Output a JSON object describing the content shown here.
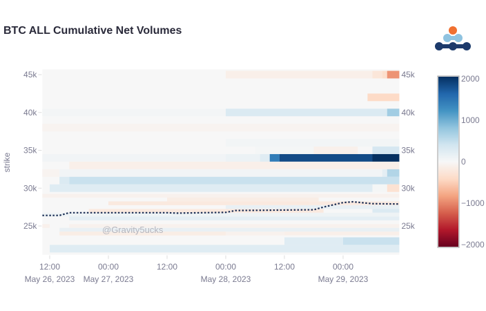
{
  "title": "BTC ALL Cumulative Net Volumes",
  "watermark": "@Gravity5ucks",
  "logo": {
    "colors": [
      "#f07030",
      "#8fc3e0",
      "#1c3a6b"
    ]
  },
  "chart_data": {
    "type": "heatmap",
    "title": "BTC ALL Cumulative Net Volumes",
    "ylabel": "strike",
    "xlabel": "",
    "xrange": [
      "2023-05-26T10:30",
      "2023-05-29T11:30"
    ],
    "yrange": [
      21200,
      45700
    ],
    "y_ticks": [
      {
        "v": 25000,
        "label": "25k"
      },
      {
        "v": 30000,
        "label": "30k"
      },
      {
        "v": 35000,
        "label": "35k"
      },
      {
        "v": 40000,
        "label": "40k"
      },
      {
        "v": 45000,
        "label": "45k"
      }
    ],
    "x_ticks": [
      {
        "t": "2023-05-26T12:00",
        "label": "12:00",
        "date": "May 26, 2023"
      },
      {
        "t": "2023-05-27T00:00",
        "label": "00:00",
        "date": "May 27, 2023"
      },
      {
        "t": "2023-05-27T12:00",
        "label": "12:00",
        "date": ""
      },
      {
        "t": "2023-05-28T00:00",
        "label": "00:00",
        "date": "May 28, 2023"
      },
      {
        "t": "2023-05-28T12:00",
        "label": "12:00",
        "date": ""
      },
      {
        "t": "2023-05-29T00:00",
        "label": "00:00",
        "date": "May 29, 2023"
      }
    ],
    "colorscale": "RdBu",
    "zrange": [
      -2000,
      2000
    ],
    "colorbar_ticks": [
      {
        "v": 2000,
        "label": "2000"
      },
      {
        "v": 1000,
        "label": "1000"
      },
      {
        "v": 0,
        "label": "0"
      },
      {
        "v": -1000,
        "label": "−1000"
      },
      {
        "v": -2000,
        "label": "−2000"
      }
    ],
    "rows": [
      {
        "strike": 45000,
        "segments": [
          [
            "2023-05-28T00:00",
            "2023-05-29T06:00",
            -120
          ],
          [
            "2023-05-29T06:00",
            "2023-05-29T08:00",
            -250
          ],
          [
            "2023-05-29T08:00",
            "2023-05-29T09:00",
            -350
          ],
          [
            "2023-05-29T09:00",
            "2023-05-29T11:30",
            -900
          ]
        ]
      },
      {
        "strike": 42000,
        "segments": [
          [
            "2023-05-29T05:00",
            "2023-05-29T11:30",
            -400
          ]
        ]
      },
      {
        "strike": 40000,
        "segments": [
          [
            "2023-05-26T10:30",
            "2023-05-28T00:00",
            40
          ],
          [
            "2023-05-28T00:00",
            "2023-05-29T09:00",
            300
          ],
          [
            "2023-05-29T09:00",
            "2023-05-29T11:30",
            700
          ]
        ]
      },
      {
        "strike": 38000,
        "segments": [
          [
            "2023-05-26T10:30",
            "2023-05-29T11:30",
            -60
          ]
        ]
      },
      {
        "strike": 36000,
        "segments": [
          [
            "2023-05-28T00:00",
            "2023-05-29T11:30",
            50
          ]
        ]
      },
      {
        "strike": 35000,
        "segments": [
          [
            "2023-05-28T06:00",
            "2023-05-28T18:00",
            30
          ],
          [
            "2023-05-28T18:00",
            "2023-05-29T03:00",
            -100
          ],
          [
            "2023-05-29T06:00",
            "2023-05-29T11:30",
            350
          ]
        ]
      },
      {
        "strike": 34000,
        "segments": [
          [
            "2023-05-26T10:30",
            "2023-05-28T00:00",
            60
          ],
          [
            "2023-05-28T00:00",
            "2023-05-28T07:00",
            120
          ],
          [
            "2023-05-28T07:00",
            "2023-05-28T09:00",
            250
          ],
          [
            "2023-05-28T09:00",
            "2023-05-28T11:00",
            1400
          ],
          [
            "2023-05-28T11:00",
            "2023-05-29T06:00",
            1800
          ],
          [
            "2023-05-29T06:00",
            "2023-05-29T11:30",
            2000
          ]
        ]
      },
      {
        "strike": 33000,
        "segments": [
          [
            "2023-05-26T16:00",
            "2023-05-29T11:30",
            -120
          ]
        ]
      },
      {
        "strike": 32000,
        "segments": [
          [
            "2023-05-26T10:30",
            "2023-05-26T14:00",
            -60
          ],
          [
            "2023-05-26T14:00",
            "2023-05-29T08:00",
            60
          ],
          [
            "2023-05-29T08:00",
            "2023-05-29T09:00",
            200
          ],
          [
            "2023-05-29T09:00",
            "2023-05-29T11:30",
            600
          ]
        ]
      },
      {
        "strike": 31000,
        "segments": [
          [
            "2023-05-26T14:00",
            "2023-05-26T16:00",
            300
          ],
          [
            "2023-05-26T16:00",
            "2023-05-29T11:30",
            450
          ]
        ]
      },
      {
        "strike": 30000,
        "segments": [
          [
            "2023-05-26T12:00",
            "2023-05-29T06:00",
            250
          ],
          [
            "2023-05-29T06:00",
            "2023-05-29T09:00",
            30
          ],
          [
            "2023-05-29T09:00",
            "2023-05-29T11:30",
            -300
          ]
        ]
      },
      {
        "strike": 29000,
        "segments": [
          [
            "2023-05-26T10:30",
            "2023-05-29T11:30",
            -80
          ]
        ]
      },
      {
        "strike": 28500,
        "segments": [
          [
            "2023-05-27T12:00",
            "2023-05-28T19:00",
            -150
          ]
        ]
      },
      {
        "strike": 28000,
        "segments": [
          [
            "2023-05-27T00:00",
            "2023-05-28T17:00",
            -200
          ],
          [
            "2023-05-28T17:00",
            "2023-05-29T11:30",
            -180
          ]
        ]
      },
      {
        "strike": 27500,
        "segments": [
          [
            "2023-05-28T00:00",
            "2023-05-29T11:30",
            150
          ]
        ]
      },
      {
        "strike": 27000,
        "segments": [
          [
            "2023-05-26T20:00",
            "2023-05-28T20:00",
            -200
          ],
          [
            "2023-05-29T06:00",
            "2023-05-29T11:30",
            300
          ]
        ]
      },
      {
        "strike": 26500,
        "segments": [
          [
            "2023-05-26T10:30",
            "2023-05-29T11:30",
            100
          ]
        ]
      },
      {
        "strike": 26000,
        "segments": [
          [
            "2023-05-26T16:00",
            "2023-05-29T11:30",
            200
          ]
        ]
      },
      {
        "strike": 25000,
        "segments": [
          [
            "2023-05-26T10:30",
            "2023-05-26T12:00",
            -100
          ],
          [
            "2023-05-26T16:00",
            "2023-05-29T11:30",
            -80
          ]
        ]
      },
      {
        "strike": 24500,
        "segments": [
          [
            "2023-05-26T14:00",
            "2023-05-29T11:30",
            150
          ]
        ]
      },
      {
        "strike": 24000,
        "segments": [
          [
            "2023-05-26T14:00",
            "2023-05-28T00:00",
            -150
          ],
          [
            "2023-05-28T00:00",
            "2023-05-28T12:00",
            -80
          ],
          [
            "2023-05-28T12:00",
            "2023-05-29T11:30",
            -120
          ]
        ]
      },
      {
        "strike": 23000,
        "segments": [
          [
            "2023-05-28T12:00",
            "2023-05-29T00:00",
            250
          ],
          [
            "2023-05-29T00:00",
            "2023-05-29T11:30",
            450
          ]
        ]
      },
      {
        "strike": 22000,
        "segments": [
          [
            "2023-05-26T12:00",
            "2023-05-29T11:30",
            250
          ]
        ]
      }
    ],
    "price_line": {
      "style": "dotted",
      "color": "#1c2f55",
      "points": [
        [
          "2023-05-26T10:30",
          26400
        ],
        [
          "2023-05-26T14:00",
          26400
        ],
        [
          "2023-05-26T16:00",
          26750
        ],
        [
          "2023-05-27T12:00",
          26750
        ],
        [
          "2023-05-27T14:00",
          26700
        ],
        [
          "2023-05-28T00:00",
          26800
        ],
        [
          "2023-05-28T02:00",
          27050
        ],
        [
          "2023-05-28T18:00",
          27150
        ],
        [
          "2023-05-28T20:00",
          27500
        ],
        [
          "2023-05-29T00:00",
          28100
        ],
        [
          "2023-05-29T02:00",
          28200
        ],
        [
          "2023-05-29T06:00",
          27950
        ],
        [
          "2023-05-29T11:30",
          27900
        ]
      ]
    }
  }
}
